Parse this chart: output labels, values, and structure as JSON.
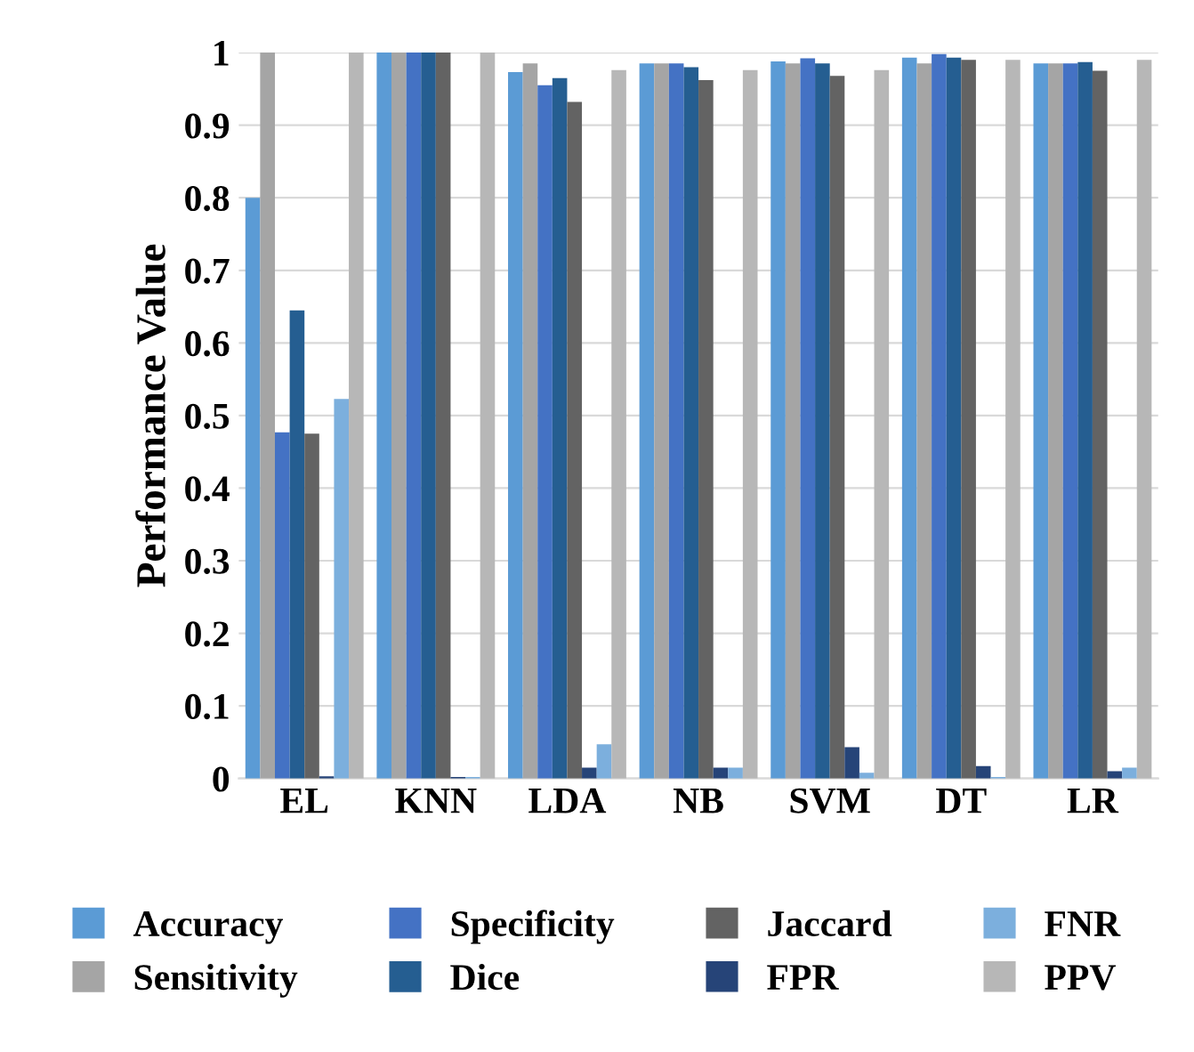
{
  "chart_data": {
    "type": "bar",
    "ylabel": "Performance Value",
    "categories": [
      "EL",
      "KNN",
      "LDA",
      "NB",
      "SVM",
      "DT",
      "LR"
    ],
    "series": [
      {
        "name": "Accuracy",
        "color": "#5b9bd5",
        "values": [
          0.8,
          1.0,
          0.973,
          0.985,
          0.988,
          0.993,
          0.985
        ]
      },
      {
        "name": "Sensitivity",
        "color": "#a5a5a5",
        "values": [
          1.0,
          1.0,
          0.985,
          0.985,
          0.985,
          0.985,
          0.985
        ]
      },
      {
        "name": "Specificity",
        "color": "#4472c4",
        "values": [
          0.477,
          1.0,
          0.955,
          0.985,
          0.992,
          0.998,
          0.985
        ]
      },
      {
        "name": "Dice",
        "color": "#255e91",
        "values": [
          0.645,
          1.0,
          0.965,
          0.98,
          0.985,
          0.993,
          0.987
        ]
      },
      {
        "name": "Jaccard",
        "color": "#636363",
        "values": [
          0.475,
          1.0,
          0.932,
          0.962,
          0.968,
          0.99,
          0.975
        ]
      },
      {
        "name": "FPR",
        "color": "#264478",
        "values": [
          0.003,
          0.002,
          0.015,
          0.015,
          0.043,
          0.017,
          0.01
        ]
      },
      {
        "name": "FNR",
        "color": "#7cafdd",
        "values": [
          0.523,
          0.002,
          0.047,
          0.015,
          0.008,
          0.002,
          0.015
        ]
      },
      {
        "name": "PPV",
        "color": "#b7b7b7",
        "values": [
          1.0,
          1.0,
          0.976,
          0.976,
          0.976,
          0.99,
          0.99
        ]
      }
    ],
    "ylim": [
      0,
      1
    ],
    "yticks": [
      0,
      0.1,
      0.2,
      0.3,
      0.4,
      0.5,
      0.6,
      0.7,
      0.8,
      0.9,
      1
    ],
    "grid": "y",
    "legend": "bottom"
  }
}
